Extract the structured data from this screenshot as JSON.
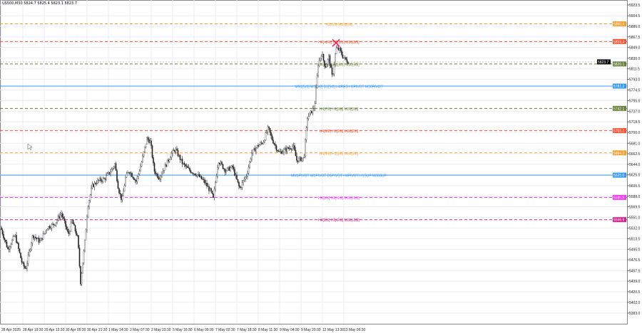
{
  "header": {
    "symbol": "US500,M30",
    "ohlc": "5824.7 5825.4 5823.1 5823.7"
  },
  "chart_data": {
    "type": "candlestick",
    "title": "",
    "ylim": [
      5383.0,
      5923.5
    ],
    "y_ticks": [
      "5923.5",
      "5904.5",
      "5886.0",
      "5867.5",
      "5849.0",
      "5830.0",
      "5811.5",
      "5793.0",
      "5774.5",
      "5755.5",
      "5737.0",
      "5718.5",
      "5700.0",
      "5681.0",
      "5662.5",
      "5644.0",
      "5625.5",
      "5606.5",
      "5588.0",
      "5569.5",
      "5551.0",
      "5532.0",
      "5513.5",
      "5495.0",
      "5476.5",
      "5457.5",
      "5439.0",
      "5420.5",
      "5402.0",
      "5383.0"
    ],
    "x_ticks": [
      "28 Apr 2025",
      "28 Apr 19:30",
      "29 Apr 12:30",
      "30 Apr 05:30",
      "30 Apr 21:30",
      "1 May 14:30",
      "2 May 07:30",
      "2 May 23:30",
      "5 May 16:30",
      "6 May 09:30",
      "7 May 02:30",
      "7 May 18:30",
      "8 May 11:30",
      "9 May 04:30",
      "9 May 20:30",
      "12 May 13:30",
      "13 May 06:30"
    ],
    "price_path_bar_price": [
      [
        0,
        5533
      ],
      [
        10,
        5495
      ],
      [
        20,
        5520
      ],
      [
        30,
        5470
      ],
      [
        35,
        5460
      ],
      [
        45,
        5520
      ],
      [
        55,
        5508
      ],
      [
        65,
        5533
      ],
      [
        75,
        5539
      ],
      [
        85,
        5558
      ],
      [
        95,
        5520
      ],
      [
        100,
        5545
      ],
      [
        108,
        5514
      ],
      [
        112,
        5437
      ],
      [
        118,
        5508
      ],
      [
        122,
        5570
      ],
      [
        128,
        5605
      ],
      [
        135,
        5614
      ],
      [
        145,
        5618
      ],
      [
        155,
        5633
      ],
      [
        160,
        5645
      ],
      [
        165,
        5601
      ],
      [
        170,
        5580
      ],
      [
        175,
        5620
      ],
      [
        180,
        5633
      ],
      [
        190,
        5614
      ],
      [
        197,
        5645
      ],
      [
        205,
        5689
      ],
      [
        210,
        5683
      ],
      [
        215,
        5633
      ],
      [
        222,
        5620
      ],
      [
        230,
        5639
      ],
      [
        240,
        5664
      ],
      [
        245,
        5670
      ],
      [
        255,
        5645
      ],
      [
        265,
        5633
      ],
      [
        275,
        5626
      ],
      [
        285,
        5614
      ],
      [
        295,
        5595
      ],
      [
        298,
        5583
      ],
      [
        305,
        5651
      ],
      [
        315,
        5633
      ],
      [
        325,
        5639
      ],
      [
        335,
        5601
      ],
      [
        340,
        5614
      ],
      [
        345,
        5626
      ],
      [
        352,
        5664
      ],
      [
        360,
        5676
      ],
      [
        368,
        5683
      ],
      [
        375,
        5708
      ],
      [
        380,
        5689
      ],
      [
        390,
        5664
      ],
      [
        400,
        5670
      ],
      [
        410,
        5676
      ],
      [
        415,
        5651
      ],
      [
        425,
        5655
      ],
      [
        430,
        5726
      ],
      [
        435,
        5735
      ],
      [
        440,
        5745
      ],
      [
        445,
        5820
      ],
      [
        450,
        5839
      ],
      [
        455,
        5814
      ],
      [
        460,
        5832
      ],
      [
        465,
        5795
      ],
      [
        470,
        5847
      ],
      [
        475,
        5845
      ],
      [
        480,
        5832
      ],
      [
        487,
        5823.7
      ]
    ],
    "current_price": "5823.7",
    "marker": {
      "type": "cross",
      "bar": 470,
      "price": 5857,
      "color": "#ff2050"
    },
    "levels": [
      {
        "price": 5890.4,
        "value": "5890.4",
        "label": "H1[7/8] M30[7/8]",
        "color": "#f7a030",
        "style": "dashed"
      },
      {
        "price": 5859.4,
        "value": "5859.4",
        "label": "H4[+2/8] H1[8/8] M30[8/8]",
        "color": "#ff5030",
        "style": "dashed"
      },
      {
        "price": 5820.1,
        "value": "5820.1",
        "label": "H4[+1/8] H1[6/8] M30[5/8]",
        "color": "#6b7f3a",
        "style": "dashed"
      },
      {
        "price": 5781.2,
        "value": "5781.2",
        "label": "MN1[5/8] W1[5/8] D1[5/8] H4RES H1PIVOT M30PIVOT",
        "color": "#3399ff",
        "style": "solid"
      },
      {
        "price": 5742.1,
        "value": "5742.1",
        "label": "H4[7/8] H1[3/8] M30[3/8]",
        "color": "#6b7f3a",
        "style": "dashed"
      },
      {
        "price": 5703.1,
        "value": "5703.1",
        "label": "H4[6/8] H1[2/8] M30[2/8]",
        "color": "#ff5030",
        "style": "dashed"
      },
      {
        "price": 5664.1,
        "value": "5664.1",
        "label": "H4[5/8] H1[1/8] M30[1/8]",
        "color": "#f7a030",
        "style": "dashed"
      },
      {
        "price": 5625.0,
        "value": "5625.0",
        "label": "MN1PIVOT W1PIVOT D1PIVOT H4PIVOT H1SUP M30SUP",
        "color": "#3399ff",
        "style": "solid"
      },
      {
        "price": 5585.9,
        "value": "5585.9",
        "label": "H4[3/8] H1[-1/8] M30[-1/8]",
        "color": "#ff33ff",
        "style": "dashed"
      },
      {
        "price": 5546.9,
        "value": "5546.9",
        "label": "H4[2/8] H1[-2/8] M30[-2/8]",
        "color": "#d4208a",
        "style": "dashed"
      }
    ],
    "grid": true
  }
}
